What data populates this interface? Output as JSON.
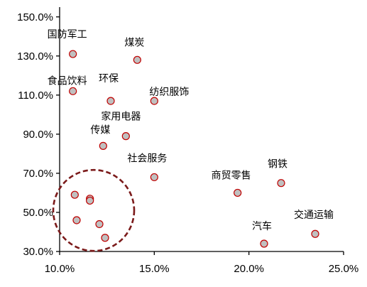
{
  "chart_data": {
    "type": "scatter",
    "title": "",
    "xlabel": "",
    "ylabel": "",
    "xlim": [
      0.1,
      0.25
    ],
    "ylim": [
      0.3,
      1.55
    ],
    "x_ticks": [
      0.1,
      0.15,
      0.2,
      0.25
    ],
    "x_tick_labels": [
      "10.0%",
      "15.0%",
      "20.0%",
      "25.0%"
    ],
    "y_ticks": [
      0.3,
      0.5,
      0.7,
      0.9,
      1.1,
      1.3,
      1.5
    ],
    "y_tick_labels": [
      "30.0%",
      "50.0%",
      "70.0%",
      "90.0%",
      "110.0%",
      "130.0%",
      "150.0%"
    ],
    "grid": false,
    "colors": {
      "marker_fill": "#c0c0c0",
      "marker_stroke": "#c00000",
      "circle_stroke": "#7b1a1a",
      "axis": "#000000"
    },
    "points": [
      {
        "label": "国防军工",
        "x": 0.107,
        "y": 1.31
      },
      {
        "label": "煤炭",
        "x": 0.141,
        "y": 1.28
      },
      {
        "label": "食品饮料",
        "x": 0.107,
        "y": 1.12
      },
      {
        "label": "环保",
        "x": 0.127,
        "y": 1.07
      },
      {
        "label": "纺织服饰",
        "x": 0.15,
        "y": 1.07
      },
      {
        "label": "家用电器",
        "x": 0.135,
        "y": 0.89
      },
      {
        "label": "传媒",
        "x": 0.123,
        "y": 0.84
      },
      {
        "label": "社会服务",
        "x": 0.15,
        "y": 0.68
      },
      {
        "label": "商贸零售",
        "x": 0.194,
        "y": 0.6
      },
      {
        "label": "钢铁",
        "x": 0.217,
        "y": 0.65
      },
      {
        "label": "汽车",
        "x": 0.208,
        "y": 0.34
      },
      {
        "label": "交通运输",
        "x": 0.235,
        "y": 0.39
      },
      {
        "label": "",
        "x": 0.108,
        "y": 0.59
      },
      {
        "label": "",
        "x": 0.116,
        "y": 0.57
      },
      {
        "label": "",
        "x": 0.116,
        "y": 0.56
      },
      {
        "label": "",
        "x": 0.109,
        "y": 0.46
      },
      {
        "label": "",
        "x": 0.121,
        "y": 0.44
      },
      {
        "label": "",
        "x": 0.124,
        "y": 0.37
      }
    ],
    "highlight_circle": {
      "cx": 0.118,
      "cy": 0.51,
      "style": "dashed"
    }
  }
}
